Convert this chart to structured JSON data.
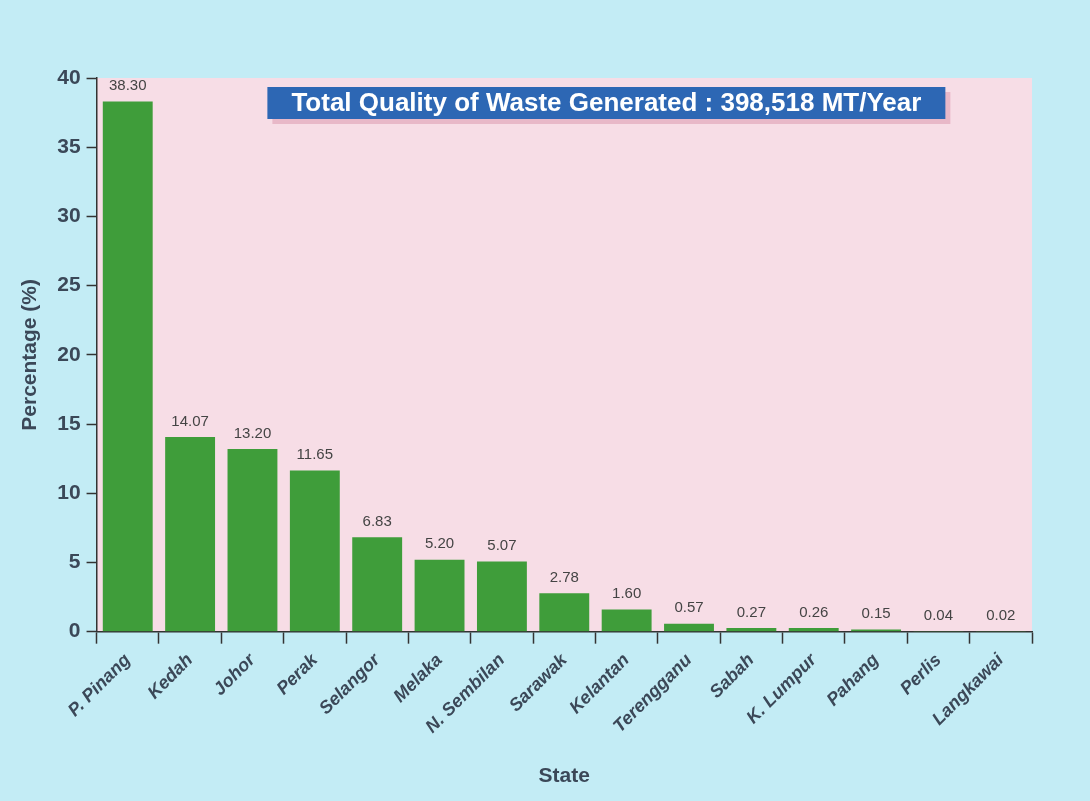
{
  "chart_data": {
    "type": "bar",
    "title": "Total Quality of Waste Generated : 398,518 MT/Year",
    "xlabel": "State",
    "ylabel": "Percentage (%)",
    "categories": [
      "P. Pinang",
      "Kedah",
      "Johor",
      "Perak",
      "Selangor",
      "Melaka",
      "N. Sembilan",
      "Sarawak",
      "Kelantan",
      "Terengganu",
      "Sabah",
      "K. Lumpur",
      "Pahang",
      "Perlis",
      "Langkawai"
    ],
    "values": [
      38.3,
      14.07,
      13.2,
      11.65,
      6.83,
      5.2,
      5.07,
      2.78,
      1.6,
      0.57,
      0.27,
      0.26,
      0.15,
      0.04,
      0.02
    ],
    "value_labels": [
      "38.30",
      "14.07",
      "13.20",
      "11.65",
      "6.83",
      "5.20",
      "5.07",
      "2.78",
      "1.60",
      "0.57",
      "0.27",
      "0.26",
      "0.15",
      "0.04",
      "0.02"
    ],
    "color": "#3f9d3a",
    "ylim": [
      0,
      40
    ],
    "yticks": [
      0,
      5,
      10,
      15,
      20,
      25,
      30,
      35,
      40
    ],
    "grid": false,
    "legend": false
  }
}
